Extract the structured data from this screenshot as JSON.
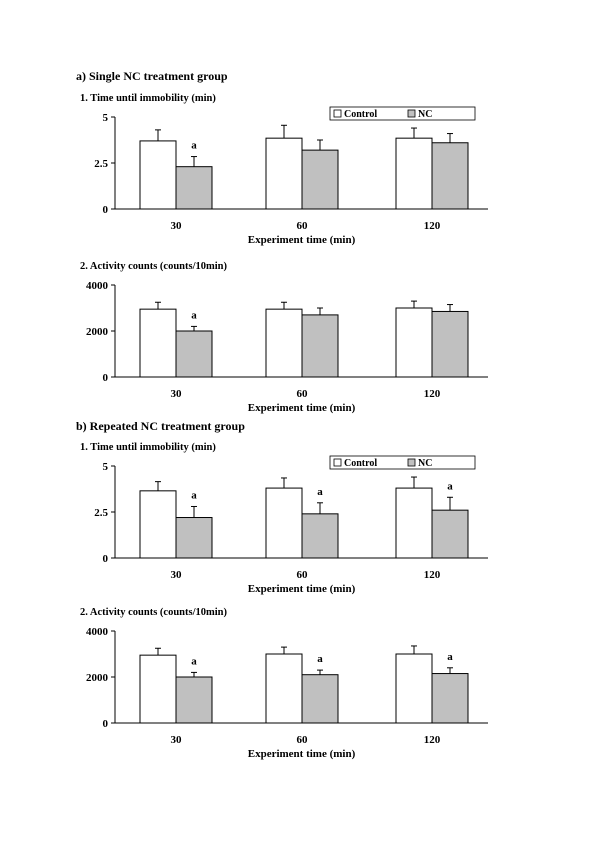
{
  "sections": [
    {
      "title": "a) Single NC treatment group"
    },
    {
      "title": "b) Repeated NC treatment group"
    }
  ],
  "panel_titles": [
    "1. Time until immobility (min)",
    "2. Activity counts (counts/10min)",
    "1. Time until immobility (min)",
    "2. Activity counts (counts/10min)"
  ],
  "colors": {
    "control": "#ffffff",
    "nc": "#c0c0c0",
    "stroke": "#000000"
  },
  "chart_data": [
    {
      "type": "bar",
      "title": "1. Time until immobility (min)",
      "xlabel": "Experiment time (min)",
      "ylabel": "",
      "categories": [
        "30",
        "60",
        "120"
      ],
      "ylim": [
        0,
        5
      ],
      "yticks": [
        "0",
        "2.5",
        "5"
      ],
      "legend": "top-right",
      "series": [
        {
          "name": "Control",
          "values": [
            3.7,
            3.85,
            3.85
          ],
          "errors": [
            0.6,
            0.7,
            0.55
          ]
        },
        {
          "name": "NC",
          "values": [
            2.3,
            3.2,
            3.6
          ],
          "errors": [
            0.55,
            0.55,
            0.5
          ]
        }
      ],
      "annotations": [
        {
          "category": "30",
          "series": "NC",
          "text": "a"
        }
      ]
    },
    {
      "type": "bar",
      "title": "2. Activity counts (counts/10min)",
      "xlabel": "Experiment time (min)",
      "ylabel": "",
      "categories": [
        "30",
        "60",
        "120"
      ],
      "ylim": [
        0,
        4000
      ],
      "yticks": [
        "0",
        "2000",
        "4000"
      ],
      "series": [
        {
          "name": "Control",
          "values": [
            2950,
            2950,
            3000
          ],
          "errors": [
            300,
            300,
            300
          ]
        },
        {
          "name": "NC",
          "values": [
            2000,
            2700,
            2850
          ],
          "errors": [
            200,
            300,
            300
          ]
        }
      ],
      "annotations": [
        {
          "category": "30",
          "series": "NC",
          "text": "a"
        }
      ]
    },
    {
      "type": "bar",
      "title": "1. Time until immobility (min)",
      "xlabel": "Experiment time (min)",
      "ylabel": "",
      "categories": [
        "30",
        "60",
        "120"
      ],
      "ylim": [
        0,
        5
      ],
      "yticks": [
        "0",
        "2.5",
        "5"
      ],
      "legend": "top-right",
      "series": [
        {
          "name": "Control",
          "values": [
            3.65,
            3.8,
            3.8
          ],
          "errors": [
            0.5,
            0.55,
            0.6
          ]
        },
        {
          "name": "NC",
          "values": [
            2.2,
            2.4,
            2.6
          ],
          "errors": [
            0.6,
            0.6,
            0.7
          ]
        }
      ],
      "annotations": [
        {
          "category": "30",
          "series": "NC",
          "text": "a"
        },
        {
          "category": "60",
          "series": "NC",
          "text": "a"
        },
        {
          "category": "120",
          "series": "NC",
          "text": "a"
        }
      ]
    },
    {
      "type": "bar",
      "title": "2. Activity counts (counts/10min)",
      "xlabel": "Experiment time (min)",
      "ylabel": "",
      "categories": [
        "30",
        "60",
        "120"
      ],
      "ylim": [
        0,
        4000
      ],
      "yticks": [
        "0",
        "2000",
        "4000"
      ],
      "series": [
        {
          "name": "Control",
          "values": [
            2950,
            3000,
            3000
          ],
          "errors": [
            300,
            300,
            350
          ]
        },
        {
          "name": "NC",
          "values": [
            2000,
            2100,
            2150
          ],
          "errors": [
            200,
            200,
            250
          ]
        }
      ],
      "annotations": [
        {
          "category": "30",
          "series": "NC",
          "text": "a"
        },
        {
          "category": "60",
          "series": "NC",
          "text": "a"
        },
        {
          "category": "120",
          "series": "NC",
          "text": "a"
        }
      ]
    }
  ]
}
